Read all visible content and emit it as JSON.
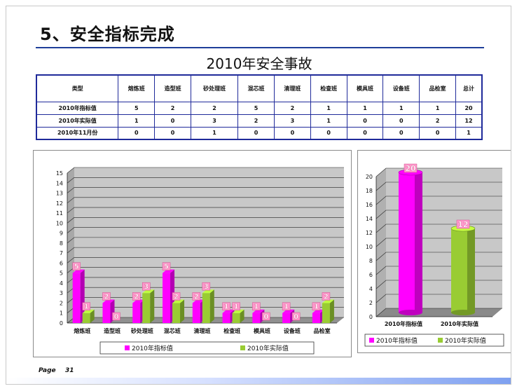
{
  "page": {
    "title": "5、安全指标完成",
    "subtitle": "2010年安全事故",
    "page_label": "Page",
    "page_number": "31"
  },
  "table": {
    "header": [
      "类型",
      "熔炼班",
      "造型班",
      "砂处理班",
      "混芯班",
      "清理班",
      "检查班",
      "模具班",
      "设备班",
      "品检室",
      "总计"
    ],
    "rows": [
      [
        "2010年指标值",
        "5",
        "2",
        "2",
        "5",
        "2",
        "1",
        "1",
        "1",
        "1",
        "20"
      ],
      [
        "2010年实际值",
        "1",
        "0",
        "3",
        "2",
        "3",
        "1",
        "0",
        "0",
        "2",
        "12"
      ],
      [
        "2010年11月份",
        "0",
        "0",
        "1",
        "0",
        "0",
        "0",
        "0",
        "0",
        "0",
        "1"
      ]
    ]
  },
  "colors": {
    "target": "#ff00ff",
    "actual": "#99cc33",
    "label_bg": "#ff99cc",
    "frame": "#1f2a9a"
  },
  "chart_data": [
    {
      "type": "bar",
      "categories": [
        "熔炼班",
        "造型班",
        "砂处理班",
        "混芯班",
        "清理班",
        "检查班",
        "模具班",
        "设备班",
        "品检室"
      ],
      "series": [
        {
          "name": "2010年指标值",
          "values": [
            5,
            2,
            2,
            5,
            2,
            1,
            1,
            1,
            1
          ]
        },
        {
          "name": "2010年实际值",
          "values": [
            1,
            0,
            3,
            2,
            3,
            1,
            0,
            0,
            2
          ]
        }
      ],
      "ylim": [
        0,
        15
      ],
      "yticks": [
        0,
        1,
        2,
        3,
        4,
        5,
        6,
        7,
        8,
        9,
        10,
        11,
        12,
        13,
        14,
        15
      ],
      "grid": true,
      "legend": "bottom"
    },
    {
      "type": "bar",
      "categories": [
        "2010年指标值",
        "2010年实际值"
      ],
      "values": [
        20,
        12
      ],
      "ylim": [
        0,
        20
      ],
      "yticks": [
        0,
        2,
        4,
        6,
        8,
        10,
        12,
        14,
        16,
        18,
        20
      ],
      "grid": true,
      "legend": "bottom",
      "legend_entries": [
        "2010年指标值",
        "2010年实际值"
      ]
    }
  ]
}
